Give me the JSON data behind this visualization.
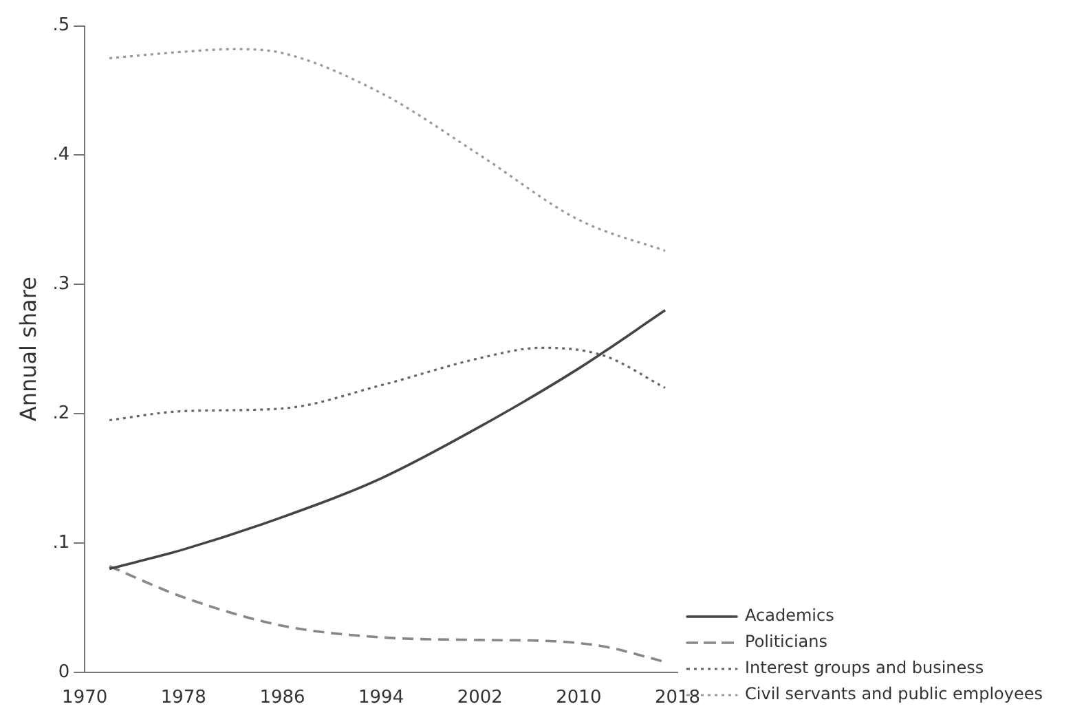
{
  "chart_data": {
    "type": "line",
    "ylabel": "Annual share",
    "xlim": [
      1970,
      2018
    ],
    "xticks": [
      1970,
      1978,
      1986,
      1994,
      2002,
      2010,
      2018
    ],
    "ylim": [
      0,
      0.5
    ],
    "yticks": [
      0,
      {
        "value": 0.1,
        "label": ".1"
      },
      {
        "value": 0.2,
        "label": ".2"
      },
      {
        "value": 0.3,
        "label": ".3"
      },
      {
        "value": 0.4,
        "label": ".4"
      },
      {
        "value": 0.5,
        "label": ".5"
      }
    ],
    "grid": false,
    "legend": "bottom right",
    "marker": "none",
    "series": [
      {
        "name": "Academics",
        "color": "#444444",
        "line_style": "solid",
        "x": [
          1972,
          1978,
          1986,
          1994,
          2002,
          2010,
          2017
        ],
        "values": [
          0.08,
          0.095,
          0.12,
          0.15,
          0.19,
          0.235,
          0.28
        ]
      },
      {
        "name": "Politicians",
        "color": "#888888",
        "line_style": "dashed",
        "x": [
          1972,
          1978,
          1986,
          1994,
          2002,
          2008,
          2012,
          2017
        ],
        "values": [
          0.082,
          0.058,
          0.036,
          0.027,
          0.025,
          0.024,
          0.02,
          0.008
        ]
      },
      {
        "name": "Interest groups and business",
        "color": "#666666",
        "line_style": "dotted",
        "x": [
          1972,
          1978,
          1986,
          1994,
          2002,
          2007,
          2012,
          2017
        ],
        "values": [
          0.195,
          0.202,
          0.204,
          0.222,
          0.243,
          0.251,
          0.245,
          0.22
        ]
      },
      {
        "name": "Civil servants and public employees",
        "color": "#999999",
        "line_style": "dotted",
        "x": [
          1972,
          1978,
          1982,
          1986,
          1994,
          2002,
          2010,
          2017
        ],
        "values": [
          0.475,
          0.48,
          0.482,
          0.479,
          0.448,
          0.4,
          0.35,
          0.326
        ]
      }
    ]
  }
}
